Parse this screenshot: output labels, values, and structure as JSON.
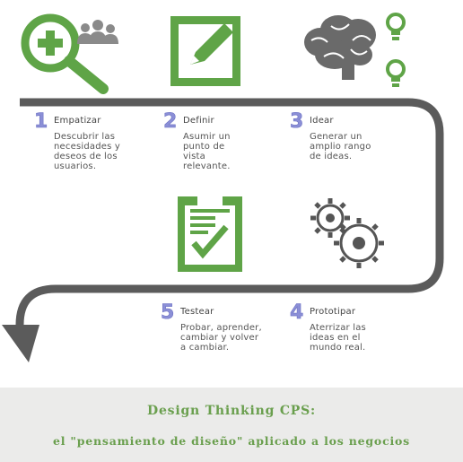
{
  "steps": [
    {
      "number": "1",
      "title": "Empatizar",
      "description": "Descubrir las necesidades y deseos de los usuarios."
    },
    {
      "number": "2",
      "title": "Definir",
      "description": "Asumir un punto de vista relevante."
    },
    {
      "number": "3",
      "title": "Idear",
      "description": "Generar un amplio rango de ideas."
    },
    {
      "number": "4",
      "title": "Prototipar",
      "description": "Aterrizar las ideas en el mundo real."
    },
    {
      "number": "5",
      "title": "Testear",
      "description": "Probar, aprender, cambiar y volver a cambiar."
    }
  ],
  "footer": {
    "line1": "Design Thinking CPS:",
    "line2": "el \"pensamiento de diseño\" aplicado a los negocios"
  },
  "colors": {
    "green": "#5fa447",
    "gray": "#5b5b5b",
    "number": "#8b8fd6",
    "footer_bg": "#ebebea",
    "footer_text": "#6a9f4e"
  },
  "icons": {
    "step1": "magnifier-plus-people-icon",
    "step2": "pencil-on-square-icon",
    "step3": "brain-with-lightbulbs-icon",
    "step4": "gears-icon",
    "step5": "clipboard-check-icon"
  }
}
